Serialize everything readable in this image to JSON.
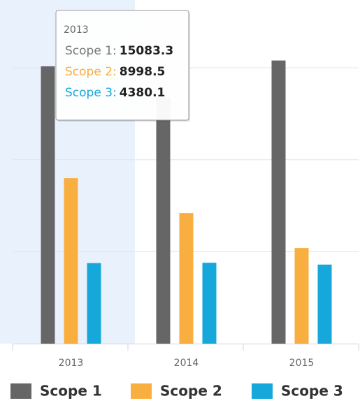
{
  "chart_data": {
    "type": "bar",
    "categories": [
      "2013",
      "2014",
      "2015"
    ],
    "series": [
      {
        "name": "Scope 1",
        "color": "#666666",
        "values": [
          15083.3,
          13400,
          15400
        ]
      },
      {
        "name": "Scope 2",
        "color": "#f9ae40",
        "values": [
          8998.5,
          7100,
          5200
        ]
      },
      {
        "name": "Scope 3",
        "color": "#16a8da",
        "values": [
          4380.1,
          4400,
          4300
        ]
      }
    ],
    "ylim": [
      0,
      18500
    ],
    "yticks": [
      5000,
      10000,
      15000
    ],
    "grid": true,
    "legend": "bottom",
    "tooltip": {
      "items": [
        {
          "label": "Scope 1:"
        },
        {
          "label": "Scope 2:"
        },
        {
          "label": "Scope 3:"
        }
      ]
    }
  }
}
